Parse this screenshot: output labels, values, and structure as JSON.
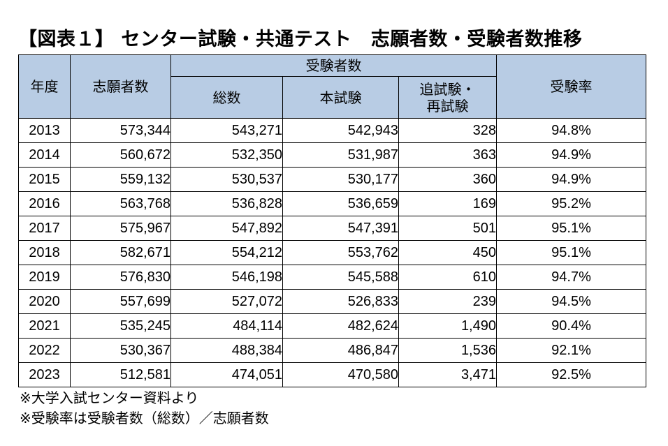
{
  "title": "【図表１】 センター試験・共通テスト　志願者数・受験者数推移",
  "headers": {
    "year": "年度",
    "applicants": "志願者数",
    "examinees_group": "受験者数",
    "total": "総数",
    "main_exam": "本試験",
    "makeup_line1": "追試験・",
    "makeup_line2": "再試験",
    "rate": "受験率"
  },
  "rows": [
    {
      "year": "2013",
      "applicants": "573,344",
      "total": "543,271",
      "main": "542,943",
      "makeup": "328",
      "rate": "94.8%"
    },
    {
      "year": "2014",
      "applicants": "560,672",
      "total": "532,350",
      "main": "531,987",
      "makeup": "363",
      "rate": "94.9%"
    },
    {
      "year": "2015",
      "applicants": "559,132",
      "total": "530,537",
      "main": "530,177",
      "makeup": "360",
      "rate": "94.9%"
    },
    {
      "year": "2016",
      "applicants": "563,768",
      "total": "536,828",
      "main": "536,659",
      "makeup": "169",
      "rate": "95.2%"
    },
    {
      "year": "2017",
      "applicants": "575,967",
      "total": "547,892",
      "main": "547,391",
      "makeup": "501",
      "rate": "95.1%"
    },
    {
      "year": "2018",
      "applicants": "582,671",
      "total": "554,212",
      "main": "553,762",
      "makeup": "450",
      "rate": "95.1%"
    },
    {
      "year": "2019",
      "applicants": "576,830",
      "total": "546,198",
      "main": "545,588",
      "makeup": "610",
      "rate": "94.7%"
    },
    {
      "year": "2020",
      "applicants": "557,699",
      "total": "527,072",
      "main": "526,833",
      "makeup": "239",
      "rate": "94.5%"
    },
    {
      "year": "2021",
      "applicants": "535,245",
      "total": "484,114",
      "main": "482,624",
      "makeup": "1,490",
      "rate": "90.4%"
    },
    {
      "year": "2022",
      "applicants": "530,367",
      "total": "488,384",
      "main": "486,847",
      "makeup": "1,536",
      "rate": "92.1%"
    },
    {
      "year": "2023",
      "applicants": "512,581",
      "total": "474,051",
      "main": "470,580",
      "makeup": "3,471",
      "rate": "92.5%"
    }
  ],
  "notes": [
    "※大学入試センター資料より",
    "※受験率は受験者数（総数）／志願者数"
  ],
  "colors": {
    "header_bg": "#b8cce4"
  }
}
